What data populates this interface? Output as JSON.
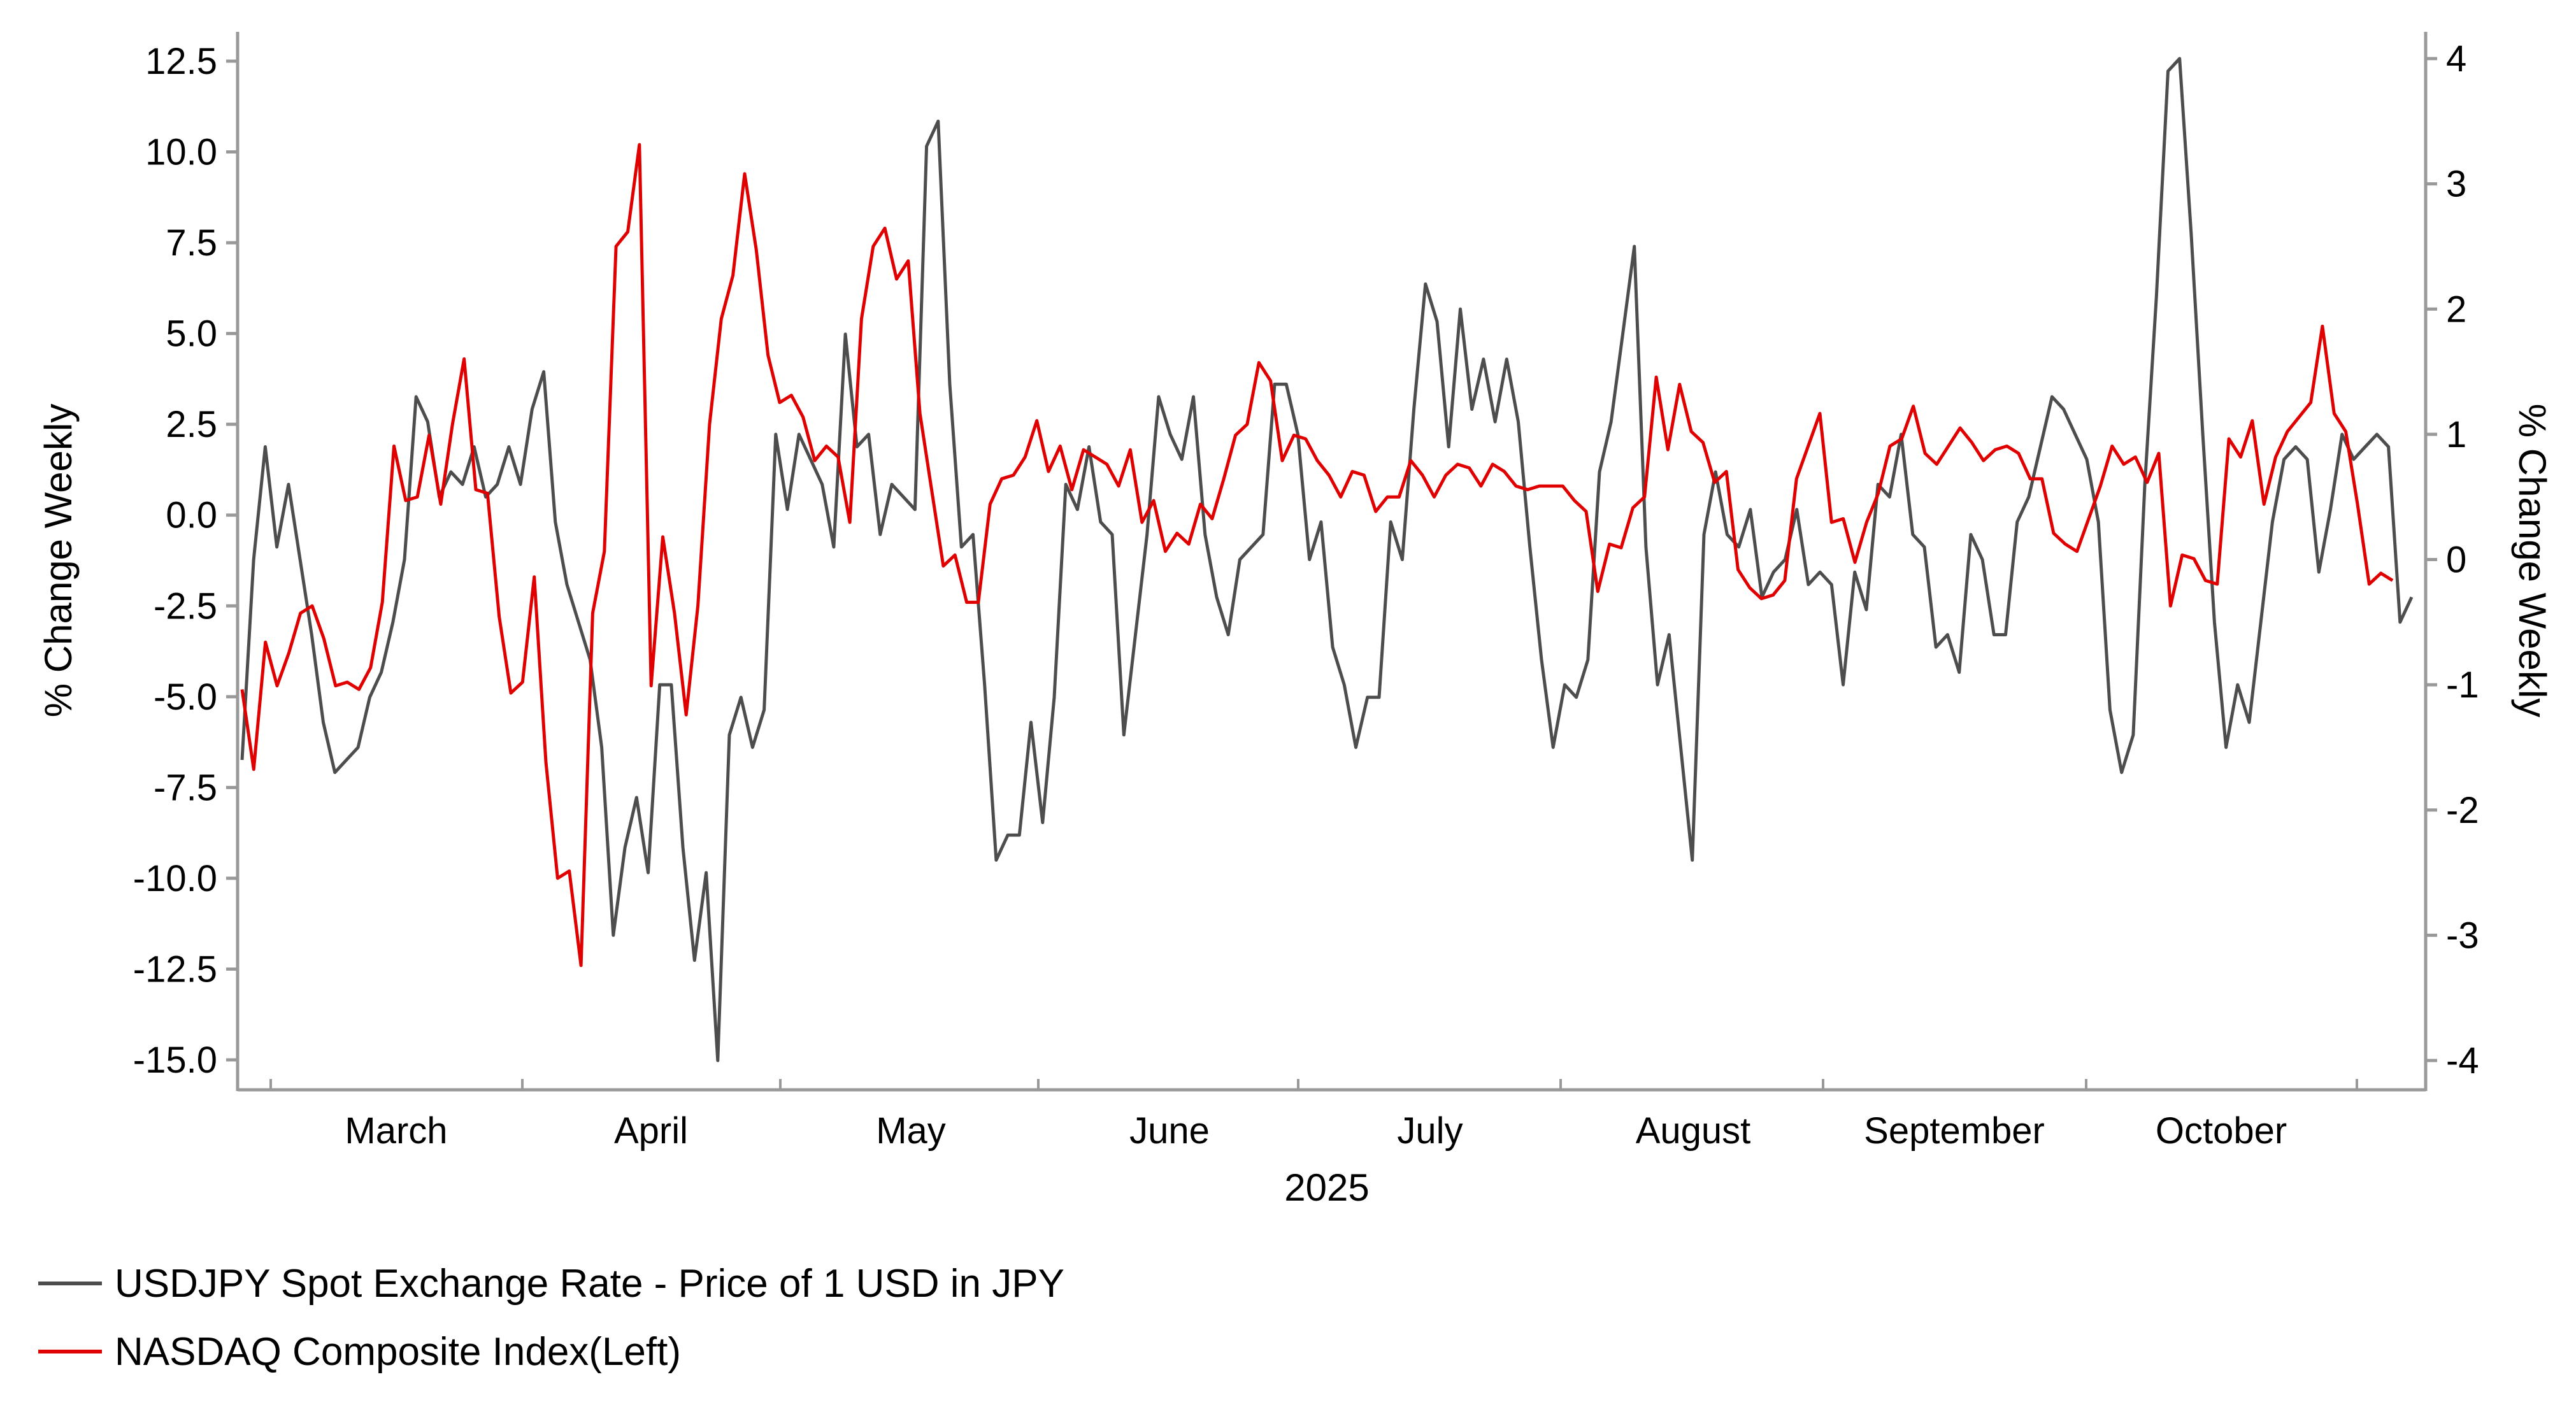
{
  "chart_data": {
    "type": "line",
    "x_label_group": "2025",
    "month_labels": [
      "March",
      "April",
      "May",
      "June",
      "July",
      "August",
      "September",
      "October"
    ],
    "ylabel_left": "% Change Weekly",
    "ylabel_right": "% Change Weekly",
    "ylim_left": [
      -15.6,
      13.2
    ],
    "ylim_right": [
      -4.2,
      4.2
    ],
    "yticks_left": [
      "12.5",
      "10.0",
      "7.5",
      "5.0",
      "2.5",
      "0.0",
      "-2.5",
      "-5.0",
      "-7.5",
      "-10.0",
      "-12.5",
      "-15.0"
    ],
    "yticks_right": [
      "4",
      "3",
      "2",
      "1",
      "0",
      "-1",
      "-2",
      "-3",
      "-4"
    ],
    "grid": false,
    "legend_placement": "bottom-left",
    "series": [
      {
        "name": "USDJPY Spot Exchange Rate - Price of 1 USD in JPY",
        "axis": "right",
        "color": "#4d4d4d",
        "values": [
          -1.6,
          -0.0,
          0.9,
          0.1,
          0.6,
          0.0,
          -0.6,
          -1.3,
          -1.7,
          -1.6,
          -1.5,
          -1.1,
          -0.9,
          -0.5,
          0.0,
          1.3,
          1.1,
          0.5,
          0.7,
          0.6,
          0.9,
          0.5,
          0.6,
          0.9,
          0.6,
          1.2,
          1.5,
          0.3,
          -0.2,
          -0.5,
          -0.8,
          -1.5,
          -3.0,
          -2.3,
          -1.9,
          -2.5,
          -1.0,
          -1.0,
          -2.3,
          -3.2,
          -2.5,
          -4.0,
          -1.4,
          -1.1,
          -1.5,
          -1.2,
          1.0,
          0.4,
          1.0,
          0.8,
          0.6,
          0.1,
          1.8,
          0.9,
          1.0,
          0.2,
          0.6,
          0.5,
          0.4,
          3.3,
          3.5,
          1.4,
          0.1,
          0.2,
          -1.0,
          -2.4,
          -2.2,
          -2.2,
          -1.3,
          -2.1,
          -1.1,
          0.6,
          0.4,
          0.9,
          0.3,
          0.2,
          -1.4,
          -0.6,
          0.2,
          1.3,
          1.0,
          0.8,
          1.3,
          0.2,
          -0.3,
          -0.6,
          -0.0,
          0.1,
          0.2,
          1.4,
          1.4,
          1.0,
          0.0,
          0.3,
          -0.7,
          -1.0,
          -1.5,
          -1.1,
          -1.1,
          0.3,
          0.0,
          1.2,
          2.2,
          1.9,
          0.9,
          2.0,
          1.2,
          1.6,
          1.1,
          1.6,
          1.1,
          0.1,
          -0.8,
          -1.5,
          -1.0,
          -1.1,
          -0.8,
          0.7,
          1.1,
          1.8,
          2.5,
          0.1,
          -1.0,
          -0.6,
          -1.5,
          -2.4,
          0.2,
          0.7,
          0.2,
          0.1,
          0.4,
          -0.3,
          -0.1,
          -0.0,
          0.4,
          -0.2,
          -0.1,
          -0.2,
          -1.0,
          -0.1,
          -0.4,
          0.6,
          0.5,
          1.0,
          0.2,
          0.1,
          -0.7,
          -0.6,
          -0.9,
          0.2,
          0.0,
          -0.6,
          -0.6,
          0.3,
          0.5,
          0.9,
          1.3,
          1.2,
          1.0,
          0.8,
          0.3,
          -1.2,
          -1.7,
          -1.4,
          0.6,
          2.1,
          3.9,
          4.0,
          2.6,
          1.0,
          -0.5,
          -1.5,
          -1.0,
          -1.3,
          -0.5,
          0.3,
          0.8,
          0.9,
          0.8,
          -0.1,
          0.4,
          1.0,
          0.8,
          0.9,
          1.0,
          0.9,
          -0.5,
          -0.3
        ],
        "values_note": ""
      },
      {
        "name": "NASDAQ Composite Index(Left)",
        "axis": "left",
        "color": "#e00000",
        "values": [
          -4.8,
          -7.0,
          -3.5,
          -4.7,
          -3.8,
          -2.7,
          -2.5,
          -3.4,
          -4.7,
          -4.6,
          -4.8,
          -4.2,
          -2.4,
          1.9,
          0.4,
          0.5,
          2.2,
          0.3,
          2.5,
          4.3,
          0.7,
          0.6,
          -2.8,
          -4.9,
          -4.6,
          -1.7,
          -6.8,
          -10.0,
          -9.8,
          -12.4,
          -2.7,
          -1.0,
          7.4,
          7.8,
          10.2,
          -4.7,
          -0.6,
          -2.7,
          -5.5,
          -2.5,
          2.5,
          5.4,
          6.6,
          9.4,
          7.3,
          4.4,
          3.1,
          3.3,
          2.7,
          1.5,
          1.9,
          1.6,
          -0.2,
          5.4,
          7.4,
          7.9,
          6.5,
          7.0,
          2.8,
          0.7,
          -1.4,
          -1.1,
          -2.4,
          -2.4,
          0.3,
          1.0,
          1.1,
          1.6,
          2.6,
          1.2,
          1.9,
          0.7,
          1.8,
          1.6,
          1.4,
          0.8,
          1.8,
          -0.2,
          0.4,
          -1.0,
          -0.5,
          -0.8,
          0.3,
          -0.1,
          1.0,
          2.2,
          2.5,
          4.2,
          3.7,
          1.5,
          2.2,
          2.1,
          1.5,
          1.1,
          0.5,
          1.2,
          1.1,
          0.1,
          0.5,
          0.5,
          1.5,
          1.1,
          0.5,
          1.1,
          1.4,
          1.3,
          0.8,
          1.4,
          1.2,
          0.8,
          0.7,
          0.8,
          0.8,
          0.8,
          0.4,
          0.1,
          -2.1,
          -0.8,
          -0.9,
          0.2,
          0.5,
          3.8,
          1.8,
          3.6,
          2.3,
          2.0,
          0.9,
          1.2,
          -1.5,
          -2.0,
          -2.3,
          -2.2,
          -1.8,
          1.0,
          1.9,
          2.8,
          -0.2,
          -0.1,
          -1.3,
          -0.2,
          0.6,
          1.9,
          2.1,
          3.0,
          1.7,
          1.4,
          1.9,
          2.4,
          2.0,
          1.5,
          1.8,
          1.9,
          1.7,
          1.0,
          1.0,
          -0.5,
          -0.8,
          -1.0,
          -0.1,
          0.8,
          1.9,
          1.4,
          1.6,
          0.9,
          1.7,
          -2.5,
          -1.1,
          -1.2,
          -1.8,
          -1.9,
          2.1,
          1.6,
          2.6,
          0.3,
          1.6,
          2.3,
          2.7,
          3.1,
          5.2,
          2.8,
          2.3,
          0.3,
          -1.9,
          -1.6,
          -1.8
        ]
      }
    ]
  }
}
